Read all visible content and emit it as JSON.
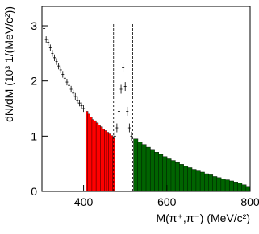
{
  "chart_data": {
    "type": "histogram",
    "xlabel": "M(π⁺,π⁻) (MeV/c²)",
    "ylabel": "dN/dM (10³ 1/(MeV/c²))",
    "xlim": [
      300,
      800
    ],
    "xticks": [
      400,
      600,
      800
    ],
    "ylim": [
      0,
      3.35
    ],
    "yticks": [
      0,
      1,
      2,
      3
    ],
    "points": {
      "x": [
        305,
        310,
        315,
        320,
        325,
        330,
        335,
        340,
        345,
        350,
        355,
        360,
        365,
        370,
        375,
        380,
        385,
        390,
        395,
        400,
        475,
        480,
        485,
        490,
        495,
        500,
        505,
        510,
        515
      ],
      "values": [
        2.95,
        2.75,
        2.7,
        2.6,
        2.5,
        2.42,
        2.35,
        2.27,
        2.2,
        2.12,
        2.05,
        1.98,
        1.92,
        1.85,
        1.78,
        1.72,
        1.65,
        1.6,
        1.55,
        1.5,
        1.0,
        1.15,
        1.45,
        1.85,
        2.25,
        1.9,
        1.45,
        1.15,
        1.0
      ],
      "errors": [
        0.06,
        0.06,
        0.06,
        0.06,
        0.06,
        0.06,
        0.06,
        0.06,
        0.06,
        0.06,
        0.06,
        0.06,
        0.06,
        0.06,
        0.06,
        0.06,
        0.06,
        0.06,
        0.06,
        0.06,
        0.08,
        0.08,
        0.08,
        0.08,
        0.08,
        0.08,
        0.08,
        0.08,
        0.08
      ]
    },
    "fills": [
      {
        "color": "#ff0000",
        "bins": [
          405,
          410,
          415,
          420,
          425,
          430,
          435,
          440,
          445,
          450,
          455,
          460,
          465,
          470,
          475
        ],
        "values": [
          1.45,
          1.4,
          1.35,
          1.3,
          1.28,
          1.24,
          1.2,
          1.17,
          1.13,
          1.1,
          1.07,
          1.04,
          1.01,
          0.98
        ]
      },
      {
        "color": "#006400",
        "bins": [
          520,
          530,
          540,
          550,
          560,
          570,
          580,
          590,
          600,
          610,
          620,
          630,
          640,
          650,
          660,
          670,
          680,
          690,
          700,
          710,
          720,
          730,
          740,
          750,
          760,
          770,
          780,
          790,
          800
        ],
        "values": [
          0.95,
          0.9,
          0.85,
          0.8,
          0.76,
          0.71,
          0.67,
          0.63,
          0.59,
          0.56,
          0.52,
          0.49,
          0.46,
          0.43,
          0.4,
          0.37,
          0.35,
          0.32,
          0.3,
          0.27,
          0.25,
          0.23,
          0.21,
          0.19,
          0.17,
          0.15,
          0.12,
          0.09
        ]
      }
    ],
    "cut_lines": [
      472,
      518
    ]
  }
}
